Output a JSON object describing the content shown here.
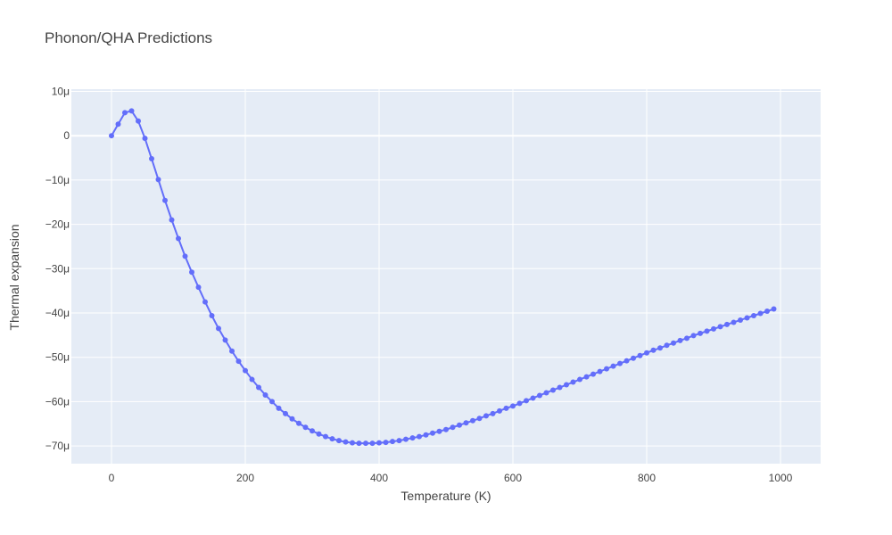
{
  "chart_data": {
    "type": "line",
    "title": "Phonon/QHA Predictions",
    "xlabel": "Temperature (K)",
    "ylabel": "Thermal expansion",
    "xlim": [
      -60,
      1060
    ],
    "ylim": [
      -74,
      10.5
    ],
    "x_ticks": [
      0,
      200,
      400,
      600,
      800,
      1000
    ],
    "x_tick_labels": [
      "0",
      "200",
      "400",
      "600",
      "800",
      "1000"
    ],
    "y_ticks": [
      10,
      0,
      -10,
      -20,
      -30,
      -40,
      -50,
      -60,
      -70
    ],
    "y_tick_labels": [
      "10μ",
      "0",
      "−10μ",
      "−20μ",
      "−30μ",
      "−40μ",
      "−50μ",
      "−60μ",
      "−70μ"
    ],
    "y_unit": "μ (×1e-6)",
    "grid": true,
    "legend": "none",
    "series": [
      {
        "color": "#636efa",
        "mode": "lines+markers",
        "x": [
          0,
          10,
          20,
          30,
          40,
          50,
          60,
          70,
          80,
          90,
          100,
          110,
          120,
          130,
          140,
          150,
          160,
          170,
          180,
          190,
          200,
          210,
          220,
          230,
          240,
          250,
          260,
          270,
          280,
          290,
          300,
          310,
          320,
          330,
          340,
          350,
          360,
          370,
          380,
          390,
          400,
          410,
          420,
          430,
          440,
          450,
          460,
          470,
          480,
          490,
          500,
          510,
          520,
          530,
          540,
          550,
          560,
          570,
          580,
          590,
          600,
          610,
          620,
          630,
          640,
          650,
          660,
          670,
          680,
          690,
          700,
          710,
          720,
          730,
          740,
          750,
          760,
          770,
          780,
          790,
          800,
          810,
          820,
          830,
          840,
          850,
          860,
          870,
          880,
          890,
          900,
          910,
          920,
          930,
          940,
          950,
          960,
          970,
          980,
          990
        ],
        "y": [
          0,
          2.6,
          5.2,
          5.6,
          3.3,
          -0.6,
          -5.2,
          -9.9,
          -14.6,
          -19.0,
          -23.2,
          -27.2,
          -30.8,
          -34.2,
          -37.5,
          -40.6,
          -43.5,
          -46.1,
          -48.6,
          -50.9,
          -53.0,
          -55.0,
          -56.8,
          -58.5,
          -60.0,
          -61.5,
          -62.7,
          -63.9,
          -64.9,
          -65.8,
          -66.6,
          -67.3,
          -67.9,
          -68.4,
          -68.8,
          -69.1,
          -69.3,
          -69.4,
          -69.4,
          -69.4,
          -69.3,
          -69.2,
          -69.0,
          -68.8,
          -68.5,
          -68.2,
          -67.9,
          -67.5,
          -67.1,
          -66.7,
          -66.3,
          -65.8,
          -65.3,
          -64.8,
          -64.3,
          -63.8,
          -63.2,
          -62.7,
          -62.1,
          -61.5,
          -61.0,
          -60.4,
          -59.8,
          -59.2,
          -58.6,
          -58.0,
          -57.4,
          -56.8,
          -56.2,
          -55.6,
          -55.0,
          -54.4,
          -53.8,
          -53.2,
          -52.6,
          -52.0,
          -51.4,
          -50.8,
          -50.2,
          -49.6,
          -49.0,
          -48.4,
          -47.9,
          -47.3,
          -46.8,
          -46.2,
          -45.7,
          -45.1,
          -44.6,
          -44.1,
          -43.6,
          -43.1,
          -42.6,
          -42.1,
          -41.6,
          -41.1,
          -40.6,
          -40.1,
          -39.6,
          -39.1
        ]
      }
    ]
  }
}
